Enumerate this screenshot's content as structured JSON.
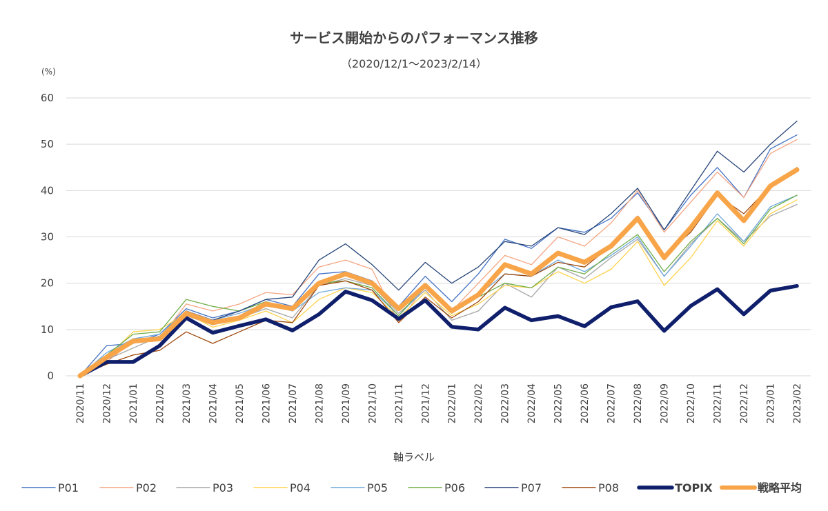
{
  "chart_data": {
    "type": "line",
    "title": "サービス開始からのパフォーマンス推移",
    "subtitle": "（2020/12/1〜2023/2/14）",
    "unit_label": "(%)",
    "xlabel": "軸ラベル",
    "ylabel": "",
    "ylim": [
      0,
      60
    ],
    "yticks": [
      0,
      10,
      20,
      30,
      40,
      50,
      60
    ],
    "grid": true,
    "legend_position": "bottom",
    "categories": [
      "2020/11",
      "2020/12",
      "2021/01",
      "2021/02",
      "2021/03",
      "2021/04",
      "2021/05",
      "2021/06",
      "2021/07",
      "2021/08",
      "2021/09",
      "2021/10",
      "2021/11",
      "2021/12",
      "2022/01",
      "2022/02",
      "2022/03",
      "2022/04",
      "2022/05",
      "2022/06",
      "2022/07",
      "2022/08",
      "2022/09",
      "2022/10",
      "2022/11",
      "2022/12",
      "2023/01",
      "2023/02"
    ],
    "series": [
      {
        "name": "P01",
        "color": "#4472c4",
        "width": 1.3,
        "values": [
          0,
          6.5,
          7.0,
          9.0,
          14.5,
          12.5,
          14.0,
          16.5,
          15.0,
          22.0,
          22.5,
          20.5,
          15.0,
          21.5,
          16.0,
          22.0,
          29.5,
          27.5,
          32.0,
          31.0,
          34.0,
          39.5,
          31.5,
          39.0,
          45.0,
          38.5,
          49.0,
          52.0
        ]
      },
      {
        "name": "P02",
        "color": "#f4a582",
        "width": 1.3,
        "values": [
          0,
          3.0,
          7.5,
          8.0,
          15.5,
          14.0,
          15.5,
          18.0,
          17.5,
          23.5,
          25.0,
          23.0,
          11.5,
          19.5,
          14.0,
          20.0,
          26.0,
          24.0,
          30.0,
          28.0,
          33.0,
          40.0,
          31.0,
          37.5,
          44.0,
          38.5,
          48.0,
          51.0
        ]
      },
      {
        "name": "P03",
        "color": "#a5a5a5",
        "width": 1.3,
        "values": [
          0,
          3.5,
          6.0,
          8.5,
          13.0,
          11.0,
          12.5,
          14.5,
          12.5,
          19.5,
          21.0,
          19.5,
          13.5,
          18.5,
          12.0,
          14.0,
          20.0,
          17.0,
          23.5,
          21.0,
          25.5,
          29.5,
          21.5,
          28.5,
          34.0,
          29.0,
          34.5,
          37.0
        ]
      },
      {
        "name": "P04",
        "color": "#ffd34d",
        "width": 1.3,
        "values": [
          0,
          4.0,
          9.5,
          10.0,
          13.5,
          10.5,
          12.0,
          14.0,
          11.5,
          16.5,
          19.0,
          18.0,
          12.5,
          18.0,
          13.0,
          15.5,
          19.5,
          19.0,
          22.5,
          20.0,
          23.0,
          29.0,
          19.5,
          25.5,
          33.5,
          28.0,
          35.0,
          38.0
        ]
      },
      {
        "name": "P05",
        "color": "#6fa8dc",
        "width": 1.3,
        "values": [
          0,
          5.0,
          8.0,
          9.0,
          14.0,
          12.0,
          13.5,
          15.5,
          14.0,
          18.0,
          19.0,
          18.5,
          13.0,
          19.0,
          14.5,
          17.5,
          22.0,
          21.5,
          25.0,
          22.5,
          26.0,
          30.0,
          21.5,
          28.0,
          35.0,
          29.0,
          36.5,
          39.0
        ]
      },
      {
        "name": "P06",
        "color": "#70ad47",
        "width": 1.3,
        "values": [
          0,
          4.5,
          9.0,
          9.5,
          16.5,
          15.0,
          14.0,
          16.0,
          14.5,
          20.0,
          20.5,
          19.0,
          13.0,
          19.5,
          13.5,
          17.0,
          20.0,
          19.0,
          23.5,
          22.0,
          26.5,
          30.5,
          22.5,
          29.0,
          34.0,
          28.5,
          36.0,
          39.0
        ]
      },
      {
        "name": "P07",
        "color": "#264478",
        "width": 1.3,
        "values": [
          0,
          4.0,
          7.5,
          8.5,
          14.0,
          12.0,
          14.0,
          16.5,
          17.0,
          25.0,
          28.5,
          24.0,
          18.5,
          24.5,
          20.0,
          23.5,
          29.0,
          28.0,
          32.0,
          30.5,
          35.0,
          40.5,
          31.5,
          40.0,
          48.5,
          44.0,
          50.0,
          55.0
        ]
      },
      {
        "name": "P08",
        "color": "#9e480e",
        "width": 1.3,
        "values": [
          0,
          2.5,
          4.5,
          5.5,
          9.5,
          7.0,
          9.5,
          12.0,
          11.5,
          19.5,
          20.5,
          18.5,
          11.5,
          17.0,
          12.5,
          16.0,
          22.0,
          21.5,
          24.5,
          23.5,
          28.0,
          34.5,
          26.0,
          31.0,
          39.0,
          35.0,
          41.0,
          45.0
        ]
      },
      {
        "name": "TOPIX",
        "color": "#0f1f6b",
        "width": 5.5,
        "bold": true,
        "values": [
          0,
          3.0,
          3.0,
          6.5,
          12.5,
          9.3,
          10.8,
          12.2,
          9.8,
          13.3,
          18.2,
          16.3,
          12.3,
          16.3,
          10.6,
          10.0,
          14.7,
          12.0,
          12.9,
          10.7,
          14.8,
          16.1,
          9.7,
          15.1,
          18.7,
          13.3,
          18.4,
          19.4
        ]
      },
      {
        "name": "戦略平均",
        "color": "#f8a54a",
        "width": 7,
        "bold": true,
        "values": [
          0,
          4.0,
          7.5,
          8.0,
          13.5,
          11.5,
          12.5,
          15.5,
          14.5,
          20.0,
          22.0,
          20.0,
          14.5,
          19.5,
          14.0,
          17.5,
          24.0,
          22.0,
          26.5,
          24.5,
          28.0,
          34.0,
          25.5,
          32.0,
          39.5,
          33.5,
          41.0,
          44.5
        ]
      }
    ]
  }
}
